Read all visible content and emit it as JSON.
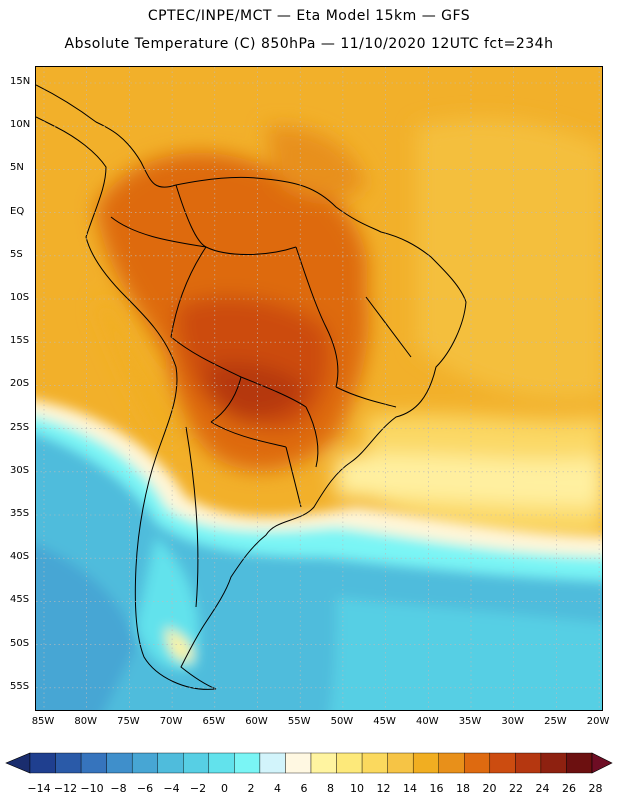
{
  "header": {
    "title_line1": "CPTEC/INPE/MCT —  Eta Model 15km — GFS",
    "title_line2": "Absolute Temperature (C) 850hPa — 11/10/2020 12UTC fct=234h"
  },
  "map": {
    "lat_labels": [
      "15N",
      "10N",
      "5N",
      "EQ",
      "5S",
      "10S",
      "15S",
      "20S",
      "25S",
      "30S",
      "35S",
      "40S",
      "45S",
      "50S",
      "55S"
    ],
    "lon_labels": [
      "85W",
      "80W",
      "75W",
      "70W",
      "65W",
      "60W",
      "55W",
      "50W",
      "45W",
      "40W",
      "35W",
      "30W",
      "25W",
      "20W"
    ]
  },
  "legend": {
    "labels": [
      "-14",
      "-12",
      "-10",
      "-8",
      "-6",
      "-4",
      "-2",
      "0",
      "2",
      "4",
      "6",
      "8",
      "10",
      "12",
      "14",
      "16",
      "18",
      "20",
      "22",
      "24",
      "26",
      "28"
    ],
    "colors": [
      "#1f3f8f",
      "#2a5aa8",
      "#3674bd",
      "#3f8fcb",
      "#47a6d4",
      "#4fbcdc",
      "#57cfe4",
      "#62e2ec",
      "#7af5f5",
      "#d2f4fb",
      "#fff8e2",
      "#fff4a0",
      "#fde97a",
      "#fbd95e",
      "#f6c445",
      "#f1ae21",
      "#e8901a",
      "#de6a10",
      "#cc4c10",
      "#b53710",
      "#8e2110",
      "#6c1010"
    ],
    "under_color": "#1a2d6e",
    "over_color": "#6e0d24"
  }
}
